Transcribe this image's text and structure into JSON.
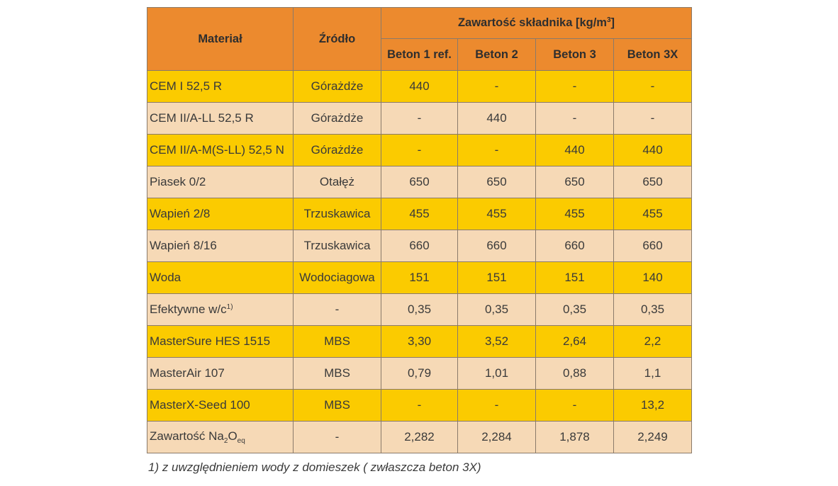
{
  "colors": {
    "header_bg": "#ec8a2e",
    "row_yellow": "#fbcb00",
    "row_peach": "#f6d9b6",
    "border": "#8a7a6a",
    "text": "#3a3a3a"
  },
  "table": {
    "header": {
      "material": "Materiał",
      "source": "Źródło",
      "group_prefix": "Zawartość składnika [kg/m",
      "group_sup": "3",
      "group_suffix": "]",
      "columns": [
        "Beton 1 ref.",
        "Beton 2",
        "Beton 3",
        "Beton 3X"
      ]
    },
    "rows": [
      {
        "material": "CEM I 52,5 R",
        "source": "Górażdże",
        "values": [
          "440",
          "-",
          "-",
          "-"
        ]
      },
      {
        "material": "CEM II/A-LL 52,5 R",
        "source": "Górażdże",
        "values": [
          "-",
          "440",
          "-",
          "-"
        ]
      },
      {
        "material": "CEM II/A-M(S-LL) 52,5 N",
        "source": "Górażdże",
        "values": [
          "-",
          "-",
          "440",
          "440"
        ]
      },
      {
        "material": "Piasek 0/2",
        "source": "Otałęż",
        "values": [
          "650",
          "650",
          "650",
          "650"
        ]
      },
      {
        "material": "Wapień 2/8",
        "source": "Trzuskawica",
        "values": [
          "455",
          "455",
          "455",
          "455"
        ]
      },
      {
        "material": "Wapień 8/16",
        "source": "Trzuskawica",
        "values": [
          "660",
          "660",
          "660",
          "660"
        ]
      },
      {
        "material": "Woda",
        "source": "Wodociagowa",
        "values": [
          "151",
          "151",
          "151",
          "140"
        ]
      },
      {
        "material": "Efektywne w/c",
        "material_sup": "1)",
        "source": "-",
        "values": [
          "0,35",
          "0,35",
          "0,35",
          "0,35"
        ]
      },
      {
        "material": "MasterSure HES 1515",
        "source": "MBS",
        "values": [
          "3,30",
          "3,52",
          "2,64",
          "2,2"
        ]
      },
      {
        "material": "MasterAir 107",
        "source": "MBS",
        "values": [
          "0,79",
          "1,01",
          "0,88",
          "1,1"
        ]
      },
      {
        "material": "MasterX-Seed 100",
        "source": "MBS",
        "values": [
          "-",
          "-",
          "-",
          "13,2"
        ]
      },
      {
        "material": "Zawartość Na",
        "material_sub1": "2",
        "material_mid": "O",
        "material_sub2": "eq",
        "source": "-",
        "values": [
          "2,282",
          "2,284",
          "1,878",
          "2,249"
        ]
      }
    ]
  },
  "footnote": "1) z uwzględnieniem wody z domieszek ( zwłaszcza beton 3X)"
}
